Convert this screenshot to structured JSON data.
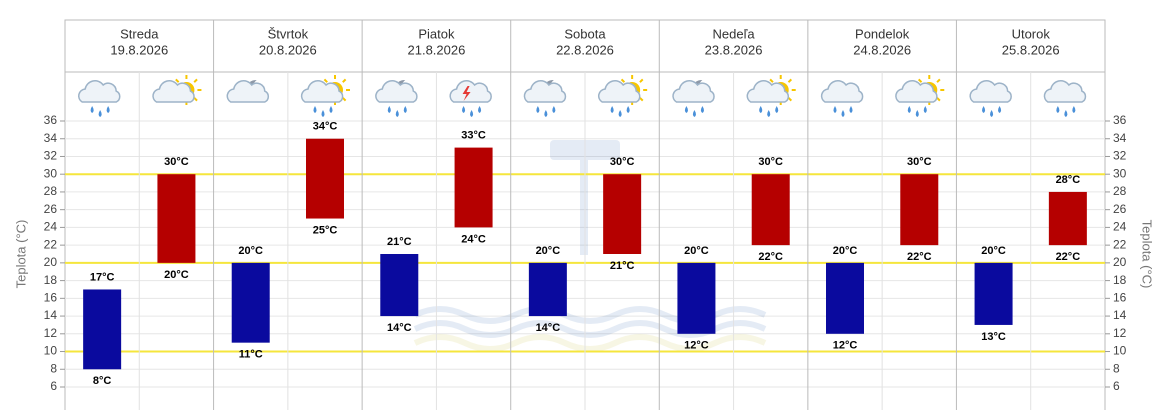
{
  "chart_data": {
    "type": "range-bar",
    "y_axis_title": "Teplota (°C)",
    "days": [
      {
        "name": "Streda",
        "date": "19.8.2026"
      },
      {
        "name": "Štvrtok",
        "date": "20.8.2026"
      },
      {
        "name": "Piatok",
        "date": "21.8.2026"
      },
      {
        "name": "Sobota",
        "date": "22.8.2026"
      },
      {
        "name": "Nedeľa",
        "date": "23.8.2026"
      },
      {
        "name": "Pondelok",
        "date": "24.8.2026"
      },
      {
        "name": "Utorok",
        "date": "25.8.2026"
      }
    ],
    "series": [
      {
        "color": "#0a0a9e",
        "low": [
          8,
          11,
          14,
          14,
          12,
          12,
          13
        ],
        "high": [
          17,
          20,
          21,
          20,
          20,
          20,
          20
        ],
        "low_labels": [
          "8°C",
          "11°C",
          "14°C",
          "14°C",
          "12°C",
          "12°C",
          "13°C"
        ],
        "high_labels": [
          "17°C",
          "20°C",
          "21°C",
          "20°C",
          "20°C",
          "20°C",
          "20°C"
        ]
      },
      {
        "color": "#b50000",
        "low": [
          20,
          25,
          24,
          21,
          22,
          22,
          22
        ],
        "high": [
          30,
          34,
          33,
          30,
          30,
          30,
          28
        ],
        "low_labels": [
          "20°C",
          "25°C",
          "24°C",
          "21°C",
          "22°C",
          "22°C",
          "22°C"
        ],
        "high_labels": [
          "30°C",
          "34°C",
          "33°C",
          "30°C",
          "30°C",
          "30°C",
          "28°C"
        ]
      }
    ],
    "ylim": [
      6,
      36
    ],
    "yticks": [
      6,
      8,
      10,
      12,
      14,
      16,
      18,
      20,
      22,
      24,
      26,
      28,
      30,
      32,
      34,
      36
    ],
    "plot_lines": [
      10,
      20,
      30
    ],
    "plot_line_color": "#f5e63c",
    "grid": true
  }
}
